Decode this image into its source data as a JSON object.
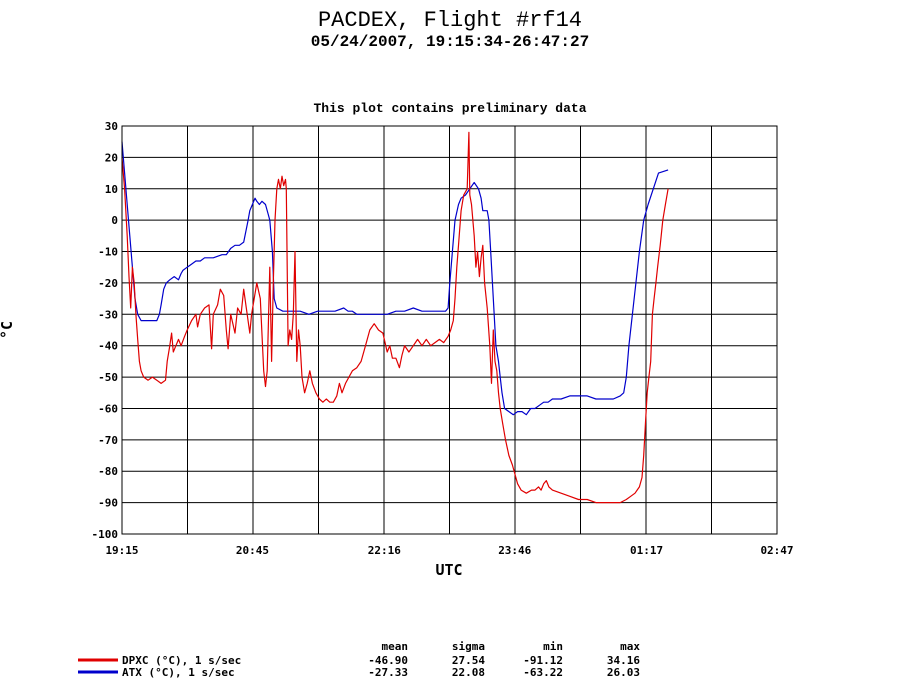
{
  "chart_data": {
    "type": "line",
    "title": "PACDEX, Flight #rf14",
    "subtitle": "05/24/2007, 19:15:34-26:47:27",
    "note": "This plot contains preliminary data",
    "xlabel": "UTC",
    "ylabel": "°C",
    "xlim": [
      19.25,
      26.783
    ],
    "ylim": [
      -100,
      30
    ],
    "x_ticks": [
      {
        "value": 19.25,
        "label": "19:15"
      },
      {
        "value": 20.75,
        "label": "20:45"
      },
      {
        "value": 22.267,
        "label": "22:16"
      },
      {
        "value": 23.767,
        "label": "23:46"
      },
      {
        "value": 25.283,
        "label": "01:17"
      },
      {
        "value": 26.783,
        "label": "02:47"
      }
    ],
    "y_ticks": [
      30,
      20,
      10,
      0,
      -10,
      -20,
      -30,
      -40,
      -50,
      -60,
      -70,
      -80,
      -90,
      -100
    ],
    "grid": true,
    "legend_position": "bottom-left",
    "stats_headers": [
      "mean",
      "sigma",
      "min",
      "max"
    ],
    "series": [
      {
        "name": "DPXC (°C), 1 s/sec",
        "color": "#e00000",
        "stats": [
          "-46.90",
          "27.54",
          "-91.12",
          "34.16"
        ],
        "points": [
          [
            19.25,
            20
          ],
          [
            19.28,
            10
          ],
          [
            19.31,
            -5
          ],
          [
            19.33,
            -18
          ],
          [
            19.35,
            -28
          ],
          [
            19.37,
            -15
          ],
          [
            19.39,
            -20
          ],
          [
            19.41,
            -30
          ],
          [
            19.43,
            -38
          ],
          [
            19.45,
            -45
          ],
          [
            19.47,
            -48
          ],
          [
            19.5,
            -50
          ],
          [
            19.55,
            -51
          ],
          [
            19.6,
            -50
          ],
          [
            19.65,
            -51
          ],
          [
            19.7,
            -52
          ],
          [
            19.75,
            -51
          ],
          [
            19.77,
            -45
          ],
          [
            19.8,
            -40
          ],
          [
            19.82,
            -36
          ],
          [
            19.84,
            -42
          ],
          [
            19.87,
            -40
          ],
          [
            19.9,
            -38
          ],
          [
            19.93,
            -40
          ],
          [
            19.97,
            -37
          ],
          [
            20.0,
            -35
          ],
          [
            20.05,
            -32
          ],
          [
            20.1,
            -30
          ],
          [
            20.12,
            -34
          ],
          [
            20.15,
            -30
          ],
          [
            20.2,
            -28
          ],
          [
            20.25,
            -27
          ],
          [
            20.28,
            -41
          ],
          [
            20.3,
            -30
          ],
          [
            20.35,
            -27
          ],
          [
            20.38,
            -22
          ],
          [
            20.42,
            -24
          ],
          [
            20.45,
            -35
          ],
          [
            20.47,
            -41
          ],
          [
            20.5,
            -30
          ],
          [
            20.55,
            -36
          ],
          [
            20.58,
            -28
          ],
          [
            20.62,
            -30
          ],
          [
            20.65,
            -22
          ],
          [
            20.68,
            -28
          ],
          [
            20.72,
            -36
          ],
          [
            20.74,
            -30
          ],
          [
            20.77,
            -25
          ],
          [
            20.8,
            -20
          ],
          [
            20.84,
            -25
          ],
          [
            20.88,
            -48
          ],
          [
            20.9,
            -53
          ],
          [
            20.92,
            -48
          ],
          [
            20.95,
            -15
          ],
          [
            20.97,
            -45
          ],
          [
            20.99,
            -20
          ],
          [
            21.01,
            0
          ],
          [
            21.03,
            10
          ],
          [
            21.05,
            13
          ],
          [
            21.07,
            10
          ],
          [
            21.09,
            14
          ],
          [
            21.11,
            11
          ],
          [
            21.13,
            13
          ],
          [
            21.14,
            10
          ],
          [
            21.16,
            -40
          ],
          [
            21.18,
            -35
          ],
          [
            21.2,
            -38
          ],
          [
            21.22,
            -30
          ],
          [
            21.24,
            -10
          ],
          [
            21.26,
            -45
          ],
          [
            21.28,
            -35
          ],
          [
            21.3,
            -40
          ],
          [
            21.32,
            -50
          ],
          [
            21.35,
            -55
          ],
          [
            21.38,
            -52
          ],
          [
            21.41,
            -48
          ],
          [
            21.44,
            -52
          ],
          [
            21.48,
            -55
          ],
          [
            21.52,
            -57
          ],
          [
            21.56,
            -58
          ],
          [
            21.6,
            -57
          ],
          [
            21.64,
            -58
          ],
          [
            21.68,
            -58
          ],
          [
            21.72,
            -56
          ],
          [
            21.75,
            -52
          ],
          [
            21.78,
            -55
          ],
          [
            21.82,
            -52
          ],
          [
            21.86,
            -50
          ],
          [
            21.9,
            -48
          ],
          [
            21.95,
            -47
          ],
          [
            22.0,
            -45
          ],
          [
            22.05,
            -40
          ],
          [
            22.1,
            -35
          ],
          [
            22.15,
            -33
          ],
          [
            22.2,
            -35
          ],
          [
            22.25,
            -36
          ],
          [
            22.3,
            -42
          ],
          [
            22.33,
            -40
          ],
          [
            22.36,
            -44
          ],
          [
            22.4,
            -44
          ],
          [
            22.44,
            -47
          ],
          [
            22.47,
            -43
          ],
          [
            22.5,
            -40
          ],
          [
            22.55,
            -42
          ],
          [
            22.6,
            -40
          ],
          [
            22.65,
            -38
          ],
          [
            22.7,
            -40
          ],
          [
            22.75,
            -38
          ],
          [
            22.8,
            -40
          ],
          [
            22.85,
            -39
          ],
          [
            22.9,
            -38
          ],
          [
            22.95,
            -39
          ],
          [
            23.0,
            -37
          ],
          [
            23.03,
            -35
          ],
          [
            23.06,
            -32
          ],
          [
            23.08,
            -25
          ],
          [
            23.1,
            -15
          ],
          [
            23.12,
            -8
          ],
          [
            23.15,
            3
          ],
          [
            23.18,
            8
          ],
          [
            23.22,
            10
          ],
          [
            23.24,
            28
          ],
          [
            23.25,
            8
          ],
          [
            23.27,
            5
          ],
          [
            23.3,
            -5
          ],
          [
            23.32,
            -15
          ],
          [
            23.34,
            -10
          ],
          [
            23.36,
            -18
          ],
          [
            23.38,
            -12
          ],
          [
            23.4,
            -8
          ],
          [
            23.42,
            -20
          ],
          [
            23.45,
            -28
          ],
          [
            23.48,
            -40
          ],
          [
            23.5,
            -52
          ],
          [
            23.52,
            -35
          ],
          [
            23.54,
            -45
          ],
          [
            23.56,
            -48
          ],
          [
            23.58,
            -55
          ],
          [
            23.6,
            -60
          ],
          [
            23.63,
            -65
          ],
          [
            23.66,
            -70
          ],
          [
            23.7,
            -75
          ],
          [
            23.74,
            -78
          ],
          [
            23.77,
            -81
          ],
          [
            23.8,
            -84
          ],
          [
            23.84,
            -86
          ],
          [
            23.9,
            -87
          ],
          [
            23.96,
            -86
          ],
          [
            24.0,
            -86
          ],
          [
            24.04,
            -85
          ],
          [
            24.07,
            -86
          ],
          [
            24.1,
            -84
          ],
          [
            24.13,
            -83
          ],
          [
            24.16,
            -85
          ],
          [
            24.2,
            -86
          ],
          [
            24.3,
            -87
          ],
          [
            24.4,
            -88
          ],
          [
            24.5,
            -89
          ],
          [
            24.6,
            -89
          ],
          [
            24.7,
            -90
          ],
          [
            24.8,
            -90
          ],
          [
            24.9,
            -90
          ],
          [
            24.98,
            -90
          ],
          [
            25.05,
            -89
          ],
          [
            25.1,
            -88
          ],
          [
            25.15,
            -87
          ],
          [
            25.2,
            -85
          ],
          [
            25.23,
            -82
          ],
          [
            25.25,
            -75
          ],
          [
            25.27,
            -65
          ],
          [
            25.29,
            -55
          ],
          [
            25.31,
            -50
          ],
          [
            25.33,
            -45
          ],
          [
            25.35,
            -30
          ],
          [
            25.37,
            -25
          ],
          [
            25.39,
            -20
          ],
          [
            25.41,
            -15
          ],
          [
            25.44,
            -8
          ],
          [
            25.47,
            0
          ],
          [
            25.5,
            5
          ],
          [
            25.53,
            10
          ]
        ]
      },
      {
        "name": "ATX (°C), 1 s/sec",
        "color": "#0000cc",
        "stats": [
          "-27.33",
          "22.08",
          "-63.22",
          "26.03"
        ],
        "points": [
          [
            19.25,
            25
          ],
          [
            19.28,
            15
          ],
          [
            19.31,
            5
          ],
          [
            19.34,
            -5
          ],
          [
            19.37,
            -15
          ],
          [
            19.4,
            -25
          ],
          [
            19.43,
            -30
          ],
          [
            19.47,
            -32
          ],
          [
            19.55,
            -32
          ],
          [
            19.6,
            -32
          ],
          [
            19.65,
            -32
          ],
          [
            19.68,
            -30
          ],
          [
            19.7,
            -27
          ],
          [
            19.73,
            -22
          ],
          [
            19.76,
            -20
          ],
          [
            19.8,
            -19
          ],
          [
            19.85,
            -18
          ],
          [
            19.9,
            -19
          ],
          [
            19.93,
            -17
          ],
          [
            19.95,
            -16
          ],
          [
            20.0,
            -15
          ],
          [
            20.05,
            -14
          ],
          [
            20.1,
            -13
          ],
          [
            20.15,
            -13
          ],
          [
            20.2,
            -12
          ],
          [
            20.3,
            -12
          ],
          [
            20.4,
            -11
          ],
          [
            20.45,
            -11
          ],
          [
            20.5,
            -9
          ],
          [
            20.55,
            -8
          ],
          [
            20.6,
            -8
          ],
          [
            20.65,
            -7
          ],
          [
            20.7,
            0
          ],
          [
            20.72,
            3
          ],
          [
            20.75,
            5
          ],
          [
            20.78,
            7
          ],
          [
            20.8,
            6
          ],
          [
            20.83,
            5
          ],
          [
            20.86,
            6
          ],
          [
            20.9,
            5
          ],
          [
            20.93,
            2
          ],
          [
            20.95,
            0
          ],
          [
            20.98,
            -10
          ],
          [
            21.0,
            -25
          ],
          [
            21.03,
            -28
          ],
          [
            21.1,
            -29
          ],
          [
            21.2,
            -29
          ],
          [
            21.3,
            -29
          ],
          [
            21.4,
            -30
          ],
          [
            21.5,
            -29
          ],
          [
            21.6,
            -29
          ],
          [
            21.7,
            -29
          ],
          [
            21.8,
            -28
          ],
          [
            21.85,
            -29
          ],
          [
            21.9,
            -29
          ],
          [
            21.95,
            -30
          ],
          [
            22.0,
            -30
          ],
          [
            22.1,
            -30
          ],
          [
            22.2,
            -30
          ],
          [
            22.3,
            -30
          ],
          [
            22.4,
            -29
          ],
          [
            22.5,
            -29
          ],
          [
            22.6,
            -28
          ],
          [
            22.7,
            -29
          ],
          [
            22.8,
            -29
          ],
          [
            22.9,
            -29
          ],
          [
            22.97,
            -29
          ],
          [
            23.0,
            -28
          ],
          [
            23.02,
            -20
          ],
          [
            23.05,
            -10
          ],
          [
            23.08,
            0
          ],
          [
            23.12,
            5
          ],
          [
            23.15,
            7
          ],
          [
            23.2,
            8
          ],
          [
            23.25,
            10
          ],
          [
            23.3,
            12
          ],
          [
            23.35,
            10
          ],
          [
            23.38,
            7
          ],
          [
            23.4,
            3
          ],
          [
            23.42,
            3
          ],
          [
            23.45,
            3
          ],
          [
            23.47,
            0
          ],
          [
            23.49,
            -10
          ],
          [
            23.52,
            -25
          ],
          [
            23.55,
            -40
          ],
          [
            23.58,
            -45
          ],
          [
            23.6,
            -50
          ],
          [
            23.62,
            -55
          ],
          [
            23.65,
            -60
          ],
          [
            23.7,
            -61
          ],
          [
            23.75,
            -62
          ],
          [
            23.8,
            -61
          ],
          [
            23.85,
            -61
          ],
          [
            23.9,
            -62
          ],
          [
            23.95,
            -60
          ],
          [
            24.0,
            -60
          ],
          [
            24.05,
            -59
          ],
          [
            24.1,
            -58
          ],
          [
            24.15,
            -58
          ],
          [
            24.2,
            -57
          ],
          [
            24.3,
            -57
          ],
          [
            24.4,
            -56
          ],
          [
            24.5,
            -56
          ],
          [
            24.6,
            -56
          ],
          [
            24.7,
            -57
          ],
          [
            24.8,
            -57
          ],
          [
            24.9,
            -57
          ],
          [
            24.98,
            -56
          ],
          [
            25.02,
            -55
          ],
          [
            25.05,
            -50
          ],
          [
            25.08,
            -40
          ],
          [
            25.12,
            -30
          ],
          [
            25.16,
            -20
          ],
          [
            25.2,
            -10
          ],
          [
            25.25,
            0
          ],
          [
            25.3,
            5
          ],
          [
            25.36,
            10
          ],
          [
            25.42,
            15
          ],
          [
            25.53,
            16
          ]
        ]
      }
    ]
  }
}
